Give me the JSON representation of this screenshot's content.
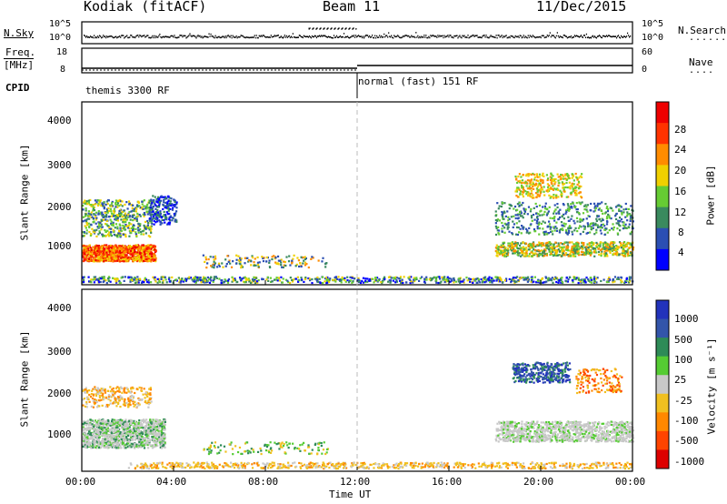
{
  "header": {
    "station": "Kodiak (fitACF)",
    "beam": "Beam 11",
    "date": "11/Dec/2015"
  },
  "nsky": {
    "label": "N.Sky",
    "ticks": [
      "10^5",
      "10^0"
    ],
    "right_label": "N.Search",
    "right_ticks": [
      "10^5",
      "10^0"
    ]
  },
  "freq": {
    "label_top": "Freq.",
    "label_unit": "[MHz]",
    "ticks": [
      "18",
      "8"
    ],
    "right_ticks": [
      "60",
      "0"
    ],
    "right_label": "Nave"
  },
  "cpid": {
    "label": "CPID",
    "modes": [
      "themis 3300 RF",
      "normal (fast) 151 RF"
    ]
  },
  "chart_data": [
    {
      "type": "heatmap",
      "name": "power",
      "ylabel": "Slant Range [km]",
      "yticks": [
        "4000",
        "3000",
        "2000",
        "1000"
      ],
      "ylim": [
        180,
        4600
      ],
      "colorbar_label": "Power [dB]",
      "colorbar_ticks": [
        "28",
        "24",
        "20",
        "16",
        "12",
        "8",
        "4"
      ],
      "colors": [
        "#0000ff",
        "#2b4fb3",
        "#3a8a5e",
        "#66cc33",
        "#f0d000",
        "#ff8c00",
        "#ff3300",
        "#ee0000"
      ]
    },
    {
      "type": "heatmap",
      "name": "velocity",
      "ylabel": "Slant Range [km]",
      "yticks": [
        "4000",
        "3000",
        "2000",
        "1000"
      ],
      "ylim": [
        180,
        4600
      ],
      "colorbar_label": "Velocity [m s⁻¹]",
      "colorbar_ticks": [
        "1000",
        "500",
        "100",
        "25",
        "-25",
        "-100",
        "-500",
        "-1000"
      ],
      "colors": [
        "#2233bb",
        "#3355aa",
        "#2e8b57",
        "#55cc33",
        "#c8c8c8",
        "#f0c020",
        "#ff8800",
        "#ff4400",
        "#dd0000"
      ]
    }
  ],
  "xaxis": {
    "ticks": [
      "00:00",
      "04:00",
      "08:00",
      "12:00",
      "16:00",
      "20:00",
      "00:00"
    ],
    "label": "Time UT"
  },
  "legend_colors": {
    "scatter_dot": "#000000",
    "gridline": "#bbbbbb"
  }
}
